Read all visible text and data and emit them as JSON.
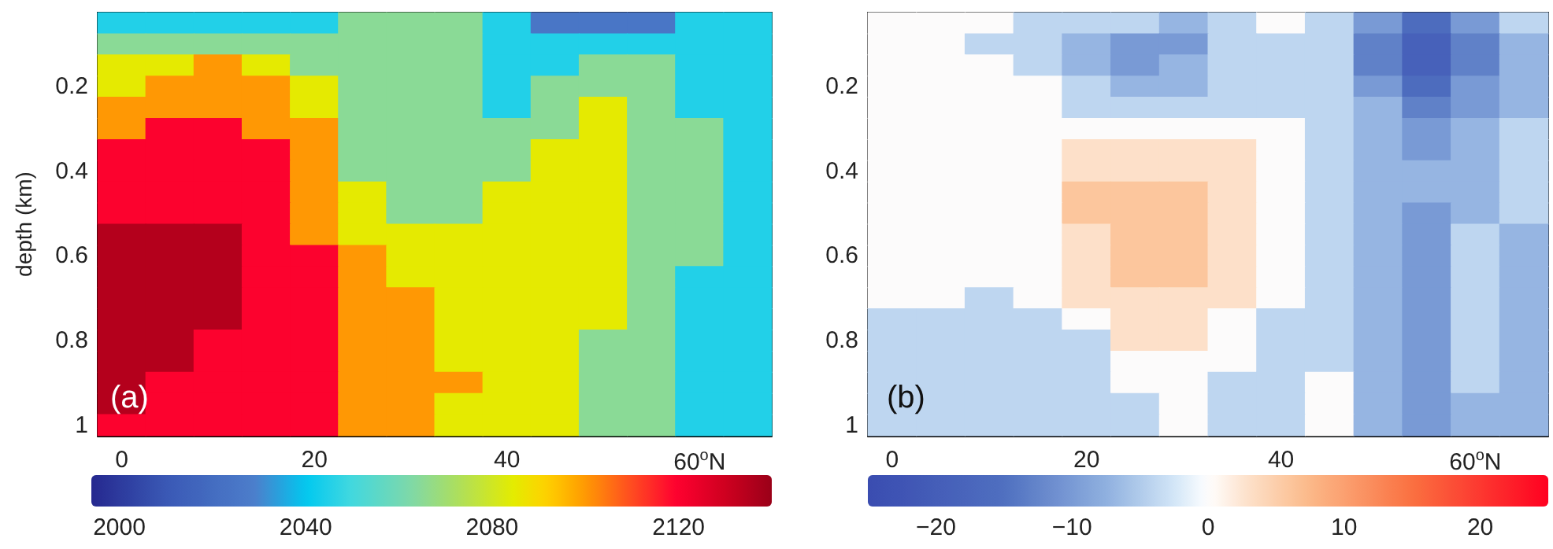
{
  "chart_data": [
    {
      "type": "heatmap",
      "ylabel": "depth (km)",
      "annotations": [
        "(a)"
      ],
      "categories": [
        "0",
        null,
        null,
        null,
        "20",
        null,
        null,
        null,
        "40",
        null,
        null,
        null,
        "60$^{o}$N",
        null
      ],
      "y_categories": [
        null,
        null,
        null,
        "0.2",
        null,
        null,
        null,
        "0.4",
        null,
        null,
        null,
        "0.6",
        null,
        null,
        null,
        "0.8",
        null,
        null,
        null,
        "1"
      ],
      "clim": [
        1994,
        2140
      ],
      "cticks": [
        2000,
        2040,
        2080,
        2120
      ],
      "grid": false,
      "cells": [
        [
          2045,
          2045,
          2045,
          2045,
          2045,
          2065,
          2065,
          2065,
          2045,
          2025,
          2025,
          2025,
          2045,
          2045
        ],
        [
          2065,
          2065,
          2065,
          2065,
          2065,
          2065,
          2065,
          2065,
          2045,
          2045,
          2045,
          2045,
          2045,
          2045
        ],
        [
          2085,
          2085,
          2100,
          2085,
          2065,
          2065,
          2065,
          2065,
          2045,
          2045,
          2065,
          2065,
          2045,
          2045
        ],
        [
          2085,
          2100,
          2100,
          2100,
          2085,
          2065,
          2065,
          2065,
          2045,
          2065,
          2065,
          2065,
          2045,
          2045
        ],
        [
          2100,
          2100,
          2100,
          2100,
          2085,
          2065,
          2065,
          2065,
          2045,
          2065,
          2085,
          2065,
          2045,
          2045
        ],
        [
          2100,
          2120,
          2120,
          2100,
          2100,
          2065,
          2065,
          2065,
          2065,
          2065,
          2085,
          2065,
          2065,
          2045
        ],
        [
          2120,
          2120,
          2120,
          2120,
          2100,
          2065,
          2065,
          2065,
          2065,
          2085,
          2085,
          2065,
          2065,
          2045
        ],
        [
          2120,
          2120,
          2120,
          2120,
          2100,
          2065,
          2065,
          2065,
          2065,
          2085,
          2085,
          2065,
          2065,
          2045
        ],
        [
          2120,
          2120,
          2120,
          2120,
          2100,
          2085,
          2065,
          2065,
          2085,
          2085,
          2085,
          2065,
          2065,
          2045
        ],
        [
          2120,
          2120,
          2120,
          2120,
          2100,
          2085,
          2065,
          2065,
          2085,
          2085,
          2085,
          2065,
          2065,
          2045
        ],
        [
          2135,
          2135,
          2135,
          2120,
          2100,
          2085,
          2085,
          2085,
          2085,
          2085,
          2085,
          2065,
          2065,
          2045
        ],
        [
          2135,
          2135,
          2135,
          2120,
          2120,
          2100,
          2085,
          2085,
          2085,
          2085,
          2085,
          2065,
          2065,
          2045
        ],
        [
          2135,
          2135,
          2135,
          2120,
          2120,
          2100,
          2085,
          2085,
          2085,
          2085,
          2085,
          2065,
          2045,
          2045
        ],
        [
          2135,
          2135,
          2135,
          2120,
          2120,
          2100,
          2100,
          2085,
          2085,
          2085,
          2085,
          2065,
          2045,
          2045
        ],
        [
          2135,
          2135,
          2135,
          2120,
          2120,
          2100,
          2100,
          2085,
          2085,
          2085,
          2085,
          2065,
          2045,
          2045
        ],
        [
          2135,
          2135,
          2120,
          2120,
          2120,
          2100,
          2100,
          2085,
          2085,
          2085,
          2065,
          2065,
          2045,
          2045
        ],
        [
          2135,
          2135,
          2120,
          2120,
          2120,
          2100,
          2100,
          2085,
          2085,
          2085,
          2065,
          2065,
          2045,
          2045
        ],
        [
          2135,
          2120,
          2120,
          2120,
          2120,
          2100,
          2100,
          2100,
          2085,
          2085,
          2065,
          2065,
          2045,
          2045
        ],
        [
          2135,
          2120,
          2120,
          2120,
          2120,
          2100,
          2100,
          2085,
          2085,
          2085,
          2065,
          2065,
          2045,
          2045
        ],
        [
          2120,
          2120,
          2120,
          2120,
          2120,
          2100,
          2100,
          2085,
          2085,
          2085,
          2065,
          2065,
          2045,
          2045
        ]
      ]
    },
    {
      "type": "heatmap",
      "annotations": [
        "(b)"
      ],
      "categories": [
        "0",
        null,
        null,
        null,
        "20",
        null,
        null,
        null,
        "40",
        null,
        null,
        null,
        "60$^{o}$N",
        null
      ],
      "y_categories": [
        null,
        null,
        null,
        "0.2",
        null,
        null,
        null,
        "0.4",
        null,
        null,
        null,
        "0.6",
        null,
        null,
        null,
        "0.8",
        null,
        null,
        null,
        "1"
      ],
      "clim": [
        -25,
        25
      ],
      "cticks": [
        -20,
        -10,
        0,
        10,
        20
      ],
      "grid": false,
      "cells": [
        [
          0,
          0,
          0,
          -4,
          -4,
          -4,
          -7,
          -4,
          0,
          -4,
          -10,
          -16,
          -10,
          -4
        ],
        [
          0,
          0,
          -4,
          -4,
          -7,
          -10,
          -10,
          -4,
          -4,
          -4,
          -13,
          -19,
          -13,
          -7
        ],
        [
          0,
          0,
          0,
          -4,
          -7,
          -10,
          -7,
          -4,
          -4,
          -4,
          -13,
          -19,
          -13,
          -7
        ],
        [
          0,
          0,
          0,
          0,
          -4,
          -7,
          -7,
          -4,
          -4,
          -4,
          -10,
          -16,
          -10,
          -7
        ],
        [
          0,
          0,
          0,
          0,
          -4,
          -4,
          -4,
          -4,
          -4,
          -4,
          -7,
          -13,
          -10,
          -7
        ],
        [
          0,
          0,
          0,
          0,
          0,
          0,
          0,
          0,
          0,
          -4,
          -7,
          -10,
          -7,
          -4
        ],
        [
          0,
          0,
          0,
          0,
          3,
          3,
          3,
          3,
          0,
          -4,
          -7,
          -10,
          -7,
          -4
        ],
        [
          0,
          0,
          0,
          0,
          3,
          3,
          3,
          3,
          0,
          -4,
          -7,
          -7,
          -7,
          -4
        ],
        [
          0,
          0,
          0,
          0,
          6,
          6,
          6,
          3,
          0,
          -4,
          -7,
          -7,
          -7,
          -4
        ],
        [
          0,
          0,
          0,
          0,
          6,
          6,
          6,
          3,
          0,
          -4,
          -7,
          -10,
          -7,
          -4
        ],
        [
          0,
          0,
          0,
          0,
          3,
          6,
          6,
          3,
          0,
          -4,
          -7,
          -10,
          -4,
          -7
        ],
        [
          0,
          0,
          0,
          0,
          3,
          6,
          6,
          3,
          0,
          -4,
          -7,
          -10,
          -4,
          -7
        ],
        [
          0,
          0,
          0,
          0,
          3,
          6,
          6,
          3,
          0,
          -4,
          -7,
          -10,
          -4,
          -7
        ],
        [
          0,
          0,
          -4,
          0,
          3,
          3,
          3,
          3,
          0,
          -4,
          -7,
          -10,
          -4,
          -7
        ],
        [
          -4,
          -4,
          -4,
          -4,
          0,
          3,
          3,
          0,
          -4,
          -4,
          -7,
          -10,
          -4,
          -7
        ],
        [
          -4,
          -4,
          -4,
          -4,
          -4,
          3,
          3,
          0,
          -4,
          -4,
          -7,
          -10,
          -4,
          -7
        ],
        [
          -4,
          -4,
          -4,
          -4,
          -4,
          0,
          0,
          0,
          -4,
          -4,
          -7,
          -10,
          -4,
          -7
        ],
        [
          -4,
          -4,
          -4,
          -4,
          -4,
          0,
          0,
          -4,
          -4,
          0,
          -7,
          -10,
          -4,
          -7
        ],
        [
          -4,
          -4,
          -4,
          -4,
          -4,
          -4,
          0,
          -4,
          -4,
          0,
          -7,
          -10,
          -7,
          -7
        ],
        [
          -4,
          -4,
          -4,
          -4,
          -4,
          -4,
          0,
          -4,
          -4,
          0,
          -7,
          -10,
          -7,
          -7
        ]
      ]
    }
  ]
}
